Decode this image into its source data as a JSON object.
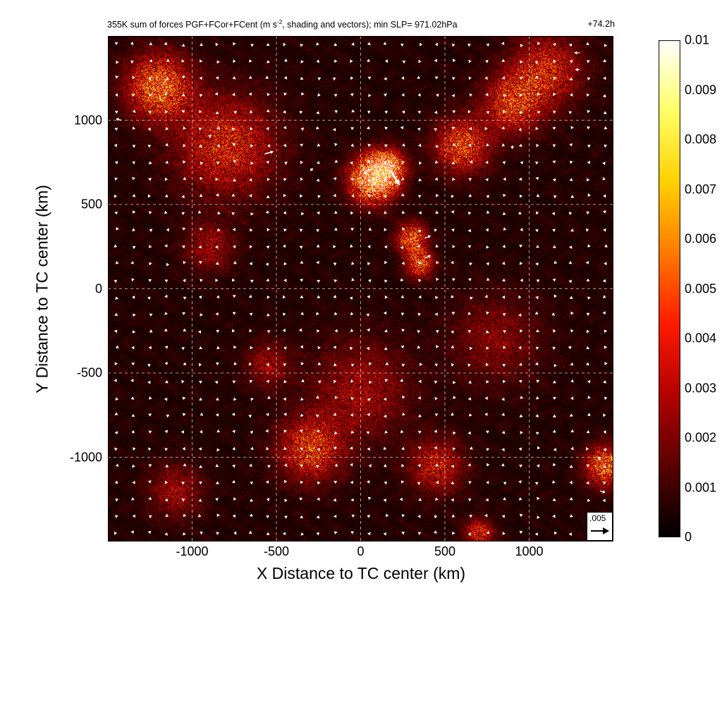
{
  "header": {
    "title": "355K sum of forces PGF+FCor+FCent (m s",
    "title_sup": "-2",
    "title_rest": ", shading and vectors); min SLP= 971.02hPa",
    "forecast_time": "+74.2h"
  },
  "chart_data": {
    "type": "heatmap",
    "subtype": "shaded field with overlaid force vectors",
    "title": "355K sum of forces PGF+FCor+FCent (m s-2, shading and vectors); min SLP= 971.02hPa",
    "annotation": "+74.2h",
    "xlabel": "X Distance to TC center (km)",
    "ylabel": "Y Distance to TC center (km)",
    "xlim": [
      -1500,
      1500
    ],
    "ylim": [
      -1500,
      1500
    ],
    "x_ticks": [
      "-1000",
      "-500",
      "0",
      "500",
      "1000"
    ],
    "y_ticks": [
      "1000",
      "500",
      "0",
      "-500",
      "-1000"
    ],
    "grid": "dashed",
    "colorbar": {
      "colormap": "hot",
      "range": [
        0,
        0.01
      ],
      "ticks": [
        "0.01",
        "0.009",
        "0.008",
        "0.007",
        "0.006",
        "0.005",
        "0.004",
        "0.003",
        "0.002",
        "0.001",
        "0"
      ],
      "colors": [
        "#000000",
        "#5a0000",
        "#b40000",
        "#ff1a00",
        "#ff7a00",
        "#ffd000",
        "#ffff66",
        "#ffffff"
      ]
    },
    "reference_vector": {
      "label": ".005",
      "magnitude": 0.005
    },
    "hotspots": [
      {
        "x": 70,
        "y": 650,
        "v": 0.0095,
        "r": 90
      },
      {
        "x": 150,
        "y": 720,
        "v": 0.008,
        "r": 70
      },
      {
        "x": 300,
        "y": 300,
        "v": 0.006,
        "r": 60
      },
      {
        "x": 350,
        "y": 150,
        "v": 0.0055,
        "r": 55
      },
      {
        "x": 600,
        "y": 850,
        "v": 0.005,
        "r": 110
      },
      {
        "x": 900,
        "y": 1100,
        "v": 0.0045,
        "r": 120
      },
      {
        "x": -800,
        "y": 850,
        "v": 0.004,
        "r": 200
      },
      {
        "x": -1200,
        "y": 1200,
        "v": 0.006,
        "r": 130
      },
      {
        "x": -300,
        "y": -950,
        "v": 0.0045,
        "r": 130
      },
      {
        "x": 450,
        "y": -1050,
        "v": 0.0035,
        "r": 110
      },
      {
        "x": 1450,
        "y": -1050,
        "v": 0.006,
        "r": 80
      },
      {
        "x": 1100,
        "y": 1300,
        "v": 0.004,
        "r": 140
      },
      {
        "x": 0,
        "y": -600,
        "v": 0.0025,
        "r": 200
      },
      {
        "x": 800,
        "y": -300,
        "v": 0.002,
        "r": 180
      },
      {
        "x": -900,
        "y": 250,
        "v": 0.0025,
        "r": 100
      },
      {
        "x": -550,
        "y": -450,
        "v": 0.0025,
        "r": 90
      },
      {
        "x": -1100,
        "y": -1200,
        "v": 0.0025,
        "r": 110
      },
      {
        "x": 700,
        "y": -1450,
        "v": 0.004,
        "r": 60
      }
    ],
    "vectors": [
      {
        "x": 60,
        "y": 710,
        "u": -0.0025,
        "v": -0.0015
      },
      {
        "x": 100,
        "y": 650,
        "u": -0.0015,
        "v": -0.002
      },
      {
        "x": 180,
        "y": 700,
        "u": 0.0028,
        "v": -0.0048
      },
      {
        "x": -570,
        "y": 800,
        "u": 0.003,
        "v": 0.0008
      },
      {
        "x": 380,
        "y": 300,
        "u": 0.002,
        "v": 0.0008
      },
      {
        "x": 380,
        "y": 180,
        "u": 0.002,
        "v": 0.001
      },
      {
        "x": -300,
        "y": 700,
        "u": 0.001,
        "v": 0.0008
      },
      {
        "x": -1420,
        "y": 1000,
        "u": -0.0018,
        "v": 0.0005
      },
      {
        "x": 1300,
        "y": 1400,
        "u": -0.0018,
        "v": 0
      },
      {
        "x": 1300,
        "y": 1300,
        "u": -0.0015,
        "v": 0
      },
      {
        "x": 1420,
        "y": -1200,
        "u": 0.0018,
        "v": -0.0005
      },
      {
        "x": 900,
        "y": 850,
        "u": 0,
        "v": -0.0012
      },
      {
        "x": -900,
        "y": 900,
        "u": 0.0008,
        "v": 0.0008
      },
      {
        "x": 1400,
        "y": -1000,
        "u": 0.0015,
        "v": -0.0006
      }
    ]
  }
}
